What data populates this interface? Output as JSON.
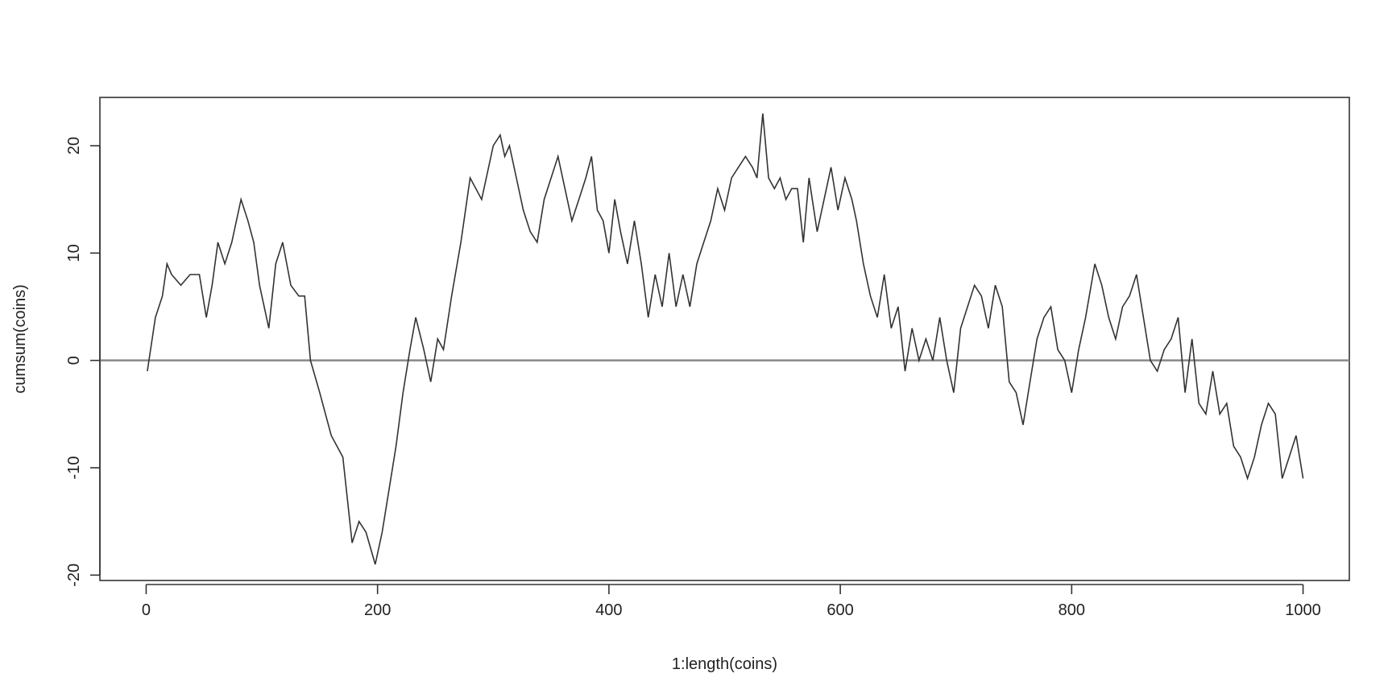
{
  "chart_data": {
    "type": "line",
    "title": "",
    "xlabel": "1:length(coins)",
    "ylabel": "cumsum(coins)",
    "xlim": [
      -40,
      1040
    ],
    "ylim": [
      -20.5,
      24.5
    ],
    "xticks": [
      0,
      200,
      400,
      600,
      800,
      1000
    ],
    "xtick_labels": [
      "0",
      "200",
      "400",
      "600",
      "800",
      "1000"
    ],
    "yticks": [
      -20,
      -10,
      0,
      10,
      20
    ],
    "ytick_labels": [
      "-20",
      "-10",
      "0",
      "10",
      "20"
    ],
    "grid": false,
    "legend": "none",
    "hline": 0,
    "colors": {
      "line": "#333333",
      "hline": "#888888",
      "frame": "#333333"
    },
    "series": [
      {
        "x": [
          1,
          8,
          14,
          18,
          22,
          30,
          38,
          46,
          52,
          57,
          62,
          68,
          74,
          82,
          88,
          93,
          98,
          106,
          112,
          118,
          125,
          132,
          137,
          142,
          150,
          160,
          170,
          178,
          184,
          190,
          198,
          204,
          210,
          216,
          222,
          228,
          233,
          240,
          246,
          252,
          257,
          264,
          272,
          280,
          290,
          300,
          306,
          310,
          314,
          320,
          326,
          332,
          338,
          344,
          350,
          356,
          362,
          368,
          374,
          380,
          385,
          390,
          395,
          400,
          405,
          410,
          416,
          422,
          428,
          434,
          440,
          446,
          452,
          458,
          464,
          470,
          476,
          482,
          488,
          494,
          500,
          506,
          512,
          518,
          524,
          528,
          533,
          538,
          543,
          548,
          553,
          558,
          563,
          568,
          573,
          580,
          586,
          592,
          598,
          604,
          610,
          614,
          620,
          626,
          632,
          638,
          644,
          650,
          656,
          662,
          668,
          674,
          680,
          686,
          692,
          698,
          704,
          710,
          716,
          722,
          728,
          734,
          740,
          746,
          752,
          758,
          764,
          770,
          776,
          782,
          788,
          794,
          800,
          806,
          812,
          820,
          826,
          832,
          838,
          844,
          850,
          856,
          862,
          868,
          874,
          880,
          886,
          892,
          898,
          904,
          910,
          916,
          922,
          928,
          934,
          940,
          946,
          952,
          958,
          964,
          970,
          976,
          982,
          988,
          994,
          1000
        ],
        "y": [
          -1,
          4,
          6,
          9,
          8,
          7,
          8,
          8,
          4,
          7,
          11,
          9,
          11,
          15,
          13,
          11,
          7,
          3,
          9,
          11,
          7,
          6,
          6,
          0,
          -3,
          -7,
          -9,
          -17,
          -15,
          -16,
          -19,
          -16,
          -12,
          -8,
          -3,
          1,
          4,
          1,
          -2,
          2,
          1,
          6,
          11,
          17,
          15,
          20,
          21,
          19,
          20,
          17,
          14,
          12,
          11,
          15,
          17,
          19,
          16,
          13,
          15,
          17,
          19,
          14,
          13,
          10,
          15,
          12,
          9,
          13,
          9,
          4,
          8,
          5,
          10,
          5,
          8,
          5,
          9,
          11,
          13,
          16,
          14,
          17,
          18,
          19,
          18,
          17,
          23,
          17,
          16,
          17,
          15,
          16,
          16,
          11,
          17,
          12,
          15,
          18,
          14,
          17,
          15,
          13,
          9,
          6,
          4,
          8,
          3,
          5,
          -1,
          3,
          0,
          2,
          0,
          4,
          0,
          -3,
          3,
          5,
          7,
          6,
          3,
          7,
          5,
          -2,
          -3,
          -6,
          -2,
          2,
          4,
          5,
          1,
          0,
          -3,
          1,
          4,
          9,
          7,
          4,
          2,
          5,
          6,
          8,
          4,
          0,
          -1,
          1,
          2,
          4,
          -3,
          2,
          -4,
          -5,
          -1,
          -5,
          -4,
          -8,
          -9,
          -11,
          -9,
          -6,
          -4,
          -5,
          -11,
          -9,
          -7,
          -11
        ]
      }
    ]
  }
}
